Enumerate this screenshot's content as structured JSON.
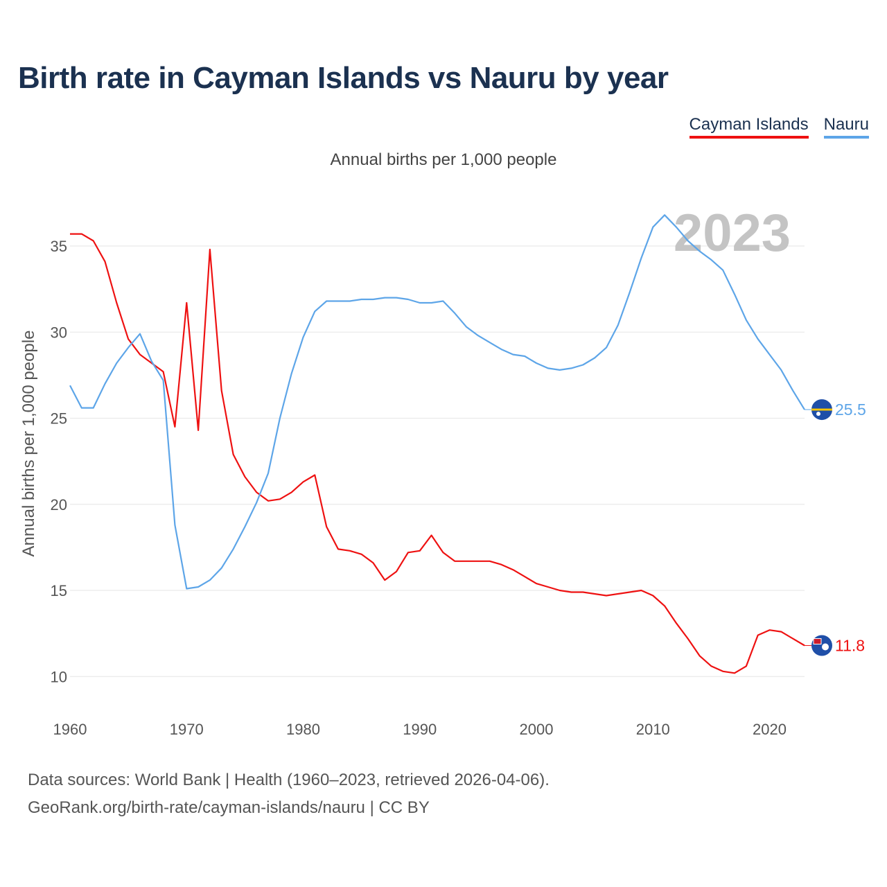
{
  "title": "Birth rate in Cayman Islands vs Nauru by year",
  "subtitle": "Annual births per 1,000 people",
  "chart_data": {
    "type": "line",
    "title": "Birth rate in Cayman Islands vs Nauru by year",
    "subtitle": "Annual births per 1,000 people",
    "xlabel": "",
    "ylabel": "Annual births per 1,000 people",
    "xlim": [
      1960,
      2023
    ],
    "ylim": [
      8.5,
      38
    ],
    "x_ticks": [
      "1960",
      "1970",
      "1980",
      "1990",
      "2000",
      "2010",
      "2020"
    ],
    "y_ticks": [
      "10",
      "15",
      "20",
      "25",
      "30",
      "35"
    ],
    "grid": true,
    "legend_position": "top-right",
    "year_label": "2023",
    "x": [
      1960,
      1961,
      1962,
      1963,
      1964,
      1965,
      1966,
      1967,
      1968,
      1969,
      1970,
      1971,
      1972,
      1973,
      1974,
      1975,
      1976,
      1977,
      1978,
      1979,
      1980,
      1981,
      1982,
      1983,
      1984,
      1985,
      1986,
      1987,
      1988,
      1989,
      1990,
      1991,
      1992,
      1993,
      1994,
      1995,
      1996,
      1997,
      1998,
      1999,
      2000,
      2001,
      2002,
      2003,
      2004,
      2005,
      2006,
      2007,
      2008,
      2009,
      2010,
      2011,
      2012,
      2013,
      2014,
      2015,
      2016,
      2017,
      2018,
      2019,
      2020,
      2021,
      2022,
      2023
    ],
    "series": [
      {
        "name": "Cayman Islands",
        "color": "#ee1111",
        "end_label": "11.8",
        "values": [
          35.7,
          35.7,
          35.3,
          34.1,
          31.7,
          29.6,
          28.7,
          28.2,
          27.7,
          24.5,
          31.7,
          24.3,
          34.8,
          26.6,
          22.9,
          21.6,
          20.7,
          20.2,
          20.3,
          20.7,
          21.3,
          21.7,
          18.7,
          17.4,
          17.3,
          17.1,
          16.6,
          15.6,
          16.1,
          17.2,
          17.3,
          18.2,
          17.2,
          16.7,
          16.7,
          16.7,
          16.7,
          16.5,
          16.2,
          15.8,
          15.4,
          15.2,
          15.0,
          14.9,
          14.9,
          14.8,
          14.7,
          14.8,
          14.9,
          15.0,
          14.7,
          14.1,
          13.1,
          12.2,
          11.2,
          10.6,
          10.3,
          10.2,
          10.6,
          12.4,
          12.7,
          12.6,
          12.2,
          11.8
        ]
      },
      {
        "name": "Nauru",
        "color": "#5da5e8",
        "end_label": "25.5",
        "values": [
          26.9,
          25.6,
          25.6,
          27.0,
          28.2,
          29.1,
          29.9,
          28.3,
          27.2,
          18.8,
          15.1,
          15.2,
          15.6,
          16.3,
          17.4,
          18.7,
          20.1,
          21.8,
          25.0,
          27.6,
          29.7,
          31.2,
          31.8,
          31.8,
          31.8,
          31.9,
          31.9,
          32.0,
          32.0,
          31.9,
          31.7,
          31.7,
          31.8,
          31.1,
          30.3,
          29.8,
          29.4,
          29.0,
          28.7,
          28.6,
          28.2,
          27.9,
          27.8,
          27.9,
          28.1,
          28.5,
          29.1,
          30.4,
          32.3,
          34.3,
          36.1,
          36.8,
          36.1,
          35.3,
          34.7,
          34.2,
          33.6,
          32.2,
          30.7,
          29.6,
          28.7,
          27.8,
          26.6,
          25.5
        ]
      }
    ]
  },
  "source": {
    "line1": "Data sources: World Bank | Health (1960–2023, retrieved 2026-04-06).",
    "line2": "GeoRank.org/birth-rate/cayman-islands/nauru | CC BY"
  }
}
